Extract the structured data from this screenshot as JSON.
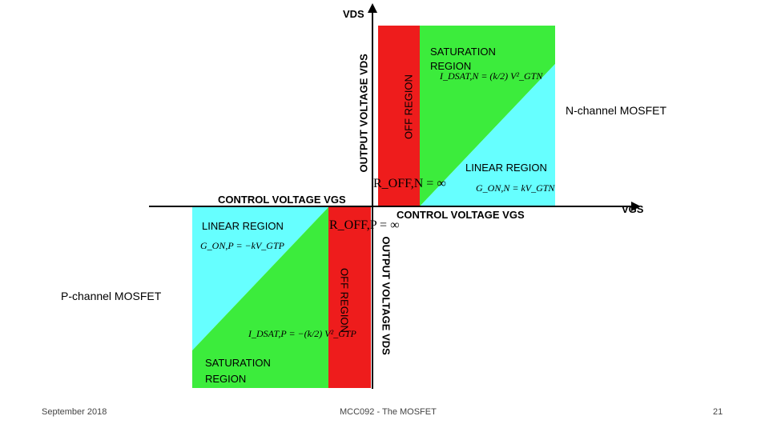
{
  "n_channel": {
    "title": "N-channel MOSFET",
    "saturation_label": "SATURATION\nREGION",
    "saturation_eq": "I_DSAT,N = (k/2) V²_GTN",
    "off_label": "OFF REGION",
    "linear_label": "LINEAR REGION",
    "linear_eq": "G_ON,N = kV_GTN",
    "roff": "R_OFF,N = ∞",
    "x_axis": "CONTROL VOLTAGE VGS",
    "y_axis": "OUTPUT VOLTAGE VDS"
  },
  "p_channel": {
    "title": "P-channel MOSFET",
    "saturation_label": "SATURATION\nREGION",
    "saturation_eq": "I_DSAT,P = −(k/2) V²_GTP",
    "off_label": "OFF REGION",
    "linear_label": "LINEAR REGION",
    "linear_eq": "G_ON,P = −kV_GTP",
    "roff": "R_OFF,P = ∞",
    "x_axis": "CONTROL VOLTAGE VGS",
    "y_axis": "OUTPUT VOLTAGE VDS"
  },
  "axes": {
    "vds": "VDS",
    "vgs": "VGS"
  },
  "colors": {
    "off": "#ee1c1c",
    "saturation": "#3cec3c",
    "linear": "#66ffff"
  },
  "footer": {
    "date": "September 2018",
    "course": "MCC092 - The MOSFET",
    "page": "21"
  }
}
